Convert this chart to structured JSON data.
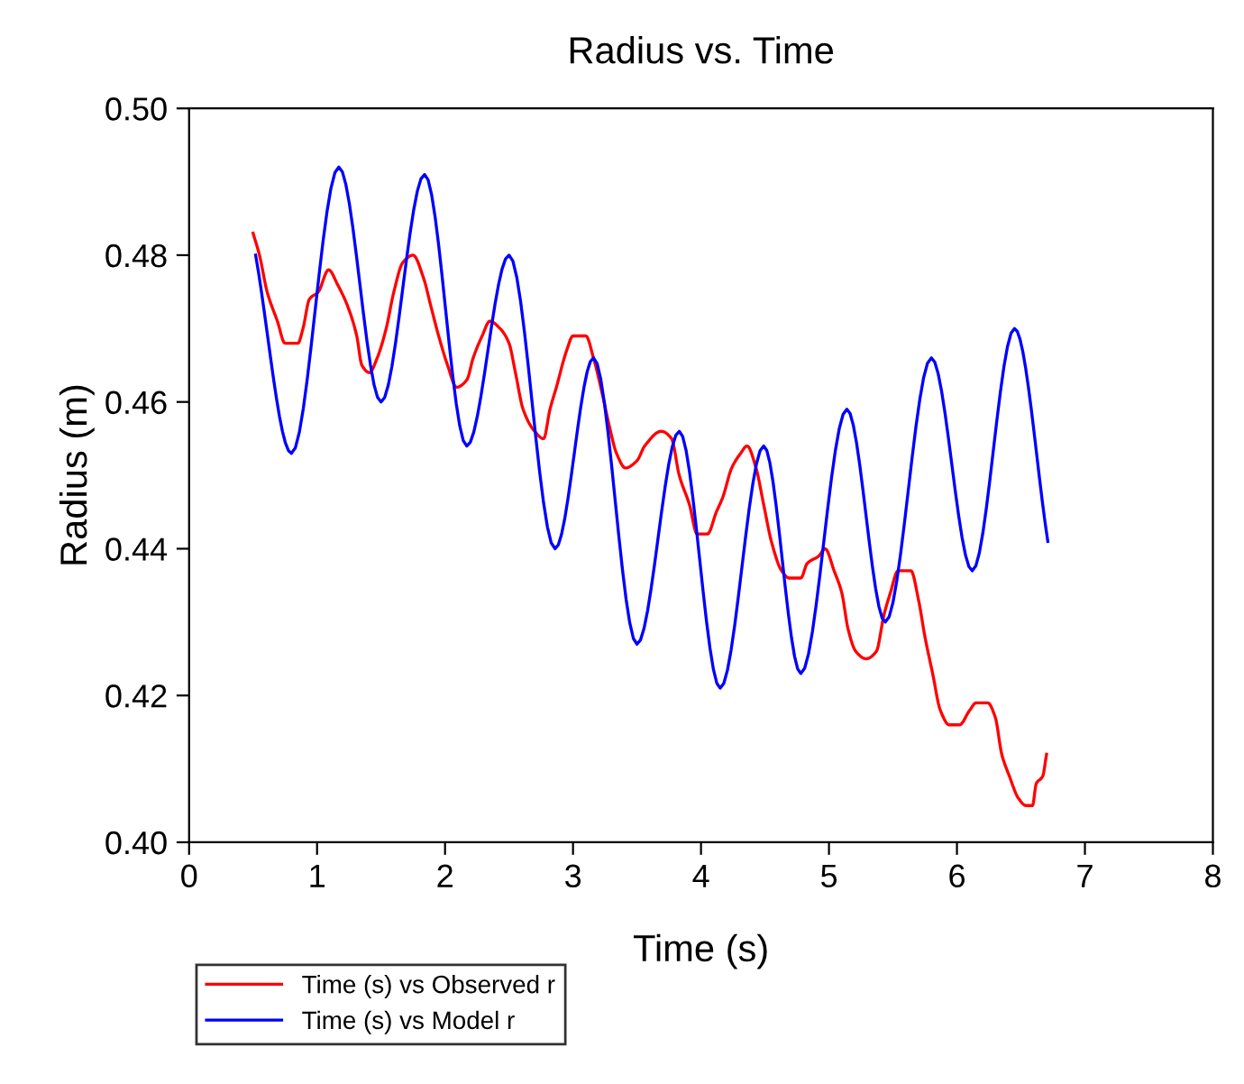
{
  "chart_data": {
    "type": "line",
    "title": "Radius vs. Time",
    "xlabel": "Time (s)",
    "ylabel": "Radius (m)",
    "xlim": [
      0,
      8
    ],
    "xticks": [
      0,
      1,
      2,
      3,
      4,
      5,
      6,
      7,
      8
    ],
    "ylim": [
      0.4,
      0.5
    ],
    "yticks": [
      {
        "value": 0.4,
        "label": "0.40"
      },
      {
        "value": 0.42,
        "label": "0.42"
      },
      {
        "value": 0.44,
        "label": "0.44"
      },
      {
        "value": 0.46,
        "label": "0.46"
      },
      {
        "value": 0.48,
        "label": "0.48"
      },
      {
        "value": 0.5,
        "label": "0.50"
      }
    ],
    "grid": false,
    "legend": "bottom left",
    "marker": "none",
    "line_style": "solid",
    "series": [
      {
        "name": "Time (s) vs Observed r",
        "color": "#ff0000",
        "x": [
          0.5,
          0.55,
          0.61,
          0.69,
          0.75,
          0.85,
          0.89,
          0.94,
          1.01,
          1.09,
          1.16,
          1.24,
          1.31,
          1.35,
          1.41,
          1.47,
          1.54,
          1.6,
          1.67,
          1.75,
          1.83,
          1.89,
          1.95,
          2.02,
          2.09,
          2.17,
          2.22,
          2.29,
          2.35,
          2.43,
          2.5,
          2.55,
          2.61,
          2.7,
          2.77,
          2.82,
          2.87,
          2.95,
          3.0,
          3.1,
          3.16,
          3.23,
          3.28,
          3.34,
          3.41,
          3.5,
          3.56,
          3.69,
          3.77,
          3.83,
          3.91,
          3.97,
          4.05,
          4.12,
          4.17,
          4.24,
          4.31,
          4.36,
          4.43,
          4.49,
          4.55,
          4.63,
          4.69,
          4.78,
          4.83,
          4.92,
          4.97,
          5.04,
          5.1,
          5.15,
          5.21,
          5.29,
          5.37,
          5.43,
          5.48,
          5.54,
          5.64,
          5.7,
          5.75,
          5.81,
          5.87,
          5.94,
          6.02,
          6.1,
          6.15,
          6.24,
          6.3,
          6.35,
          6.41,
          6.48,
          6.54,
          6.59,
          6.62,
          6.67,
          6.7
        ],
        "values": [
          0.483,
          0.48,
          0.475,
          0.471,
          0.468,
          0.468,
          0.47,
          0.474,
          0.475,
          0.478,
          0.476,
          0.473,
          0.469,
          0.465,
          0.464,
          0.466,
          0.47,
          0.475,
          0.479,
          0.48,
          0.477,
          0.473,
          0.469,
          0.465,
          0.462,
          0.463,
          0.466,
          0.469,
          0.471,
          0.47,
          0.468,
          0.464,
          0.459,
          0.456,
          0.455,
          0.459,
          0.462,
          0.467,
          0.469,
          0.469,
          0.466,
          0.461,
          0.457,
          0.453,
          0.451,
          0.452,
          0.454,
          0.456,
          0.455,
          0.45,
          0.446,
          0.442,
          0.442,
          0.445,
          0.447,
          0.451,
          0.453,
          0.454,
          0.451,
          0.446,
          0.441,
          0.437,
          0.436,
          0.436,
          0.438,
          0.439,
          0.44,
          0.437,
          0.434,
          0.429,
          0.426,
          0.425,
          0.426,
          0.431,
          0.434,
          0.437,
          0.437,
          0.433,
          0.428,
          0.423,
          0.418,
          0.416,
          0.416,
          0.418,
          0.419,
          0.419,
          0.417,
          0.412,
          0.409,
          0.406,
          0.405,
          0.405,
          0.408,
          0.409,
          0.412
        ]
      },
      {
        "name": "Time (s) vs Model r",
        "color": "#0000ff",
        "x": [
          0.52,
          0.8,
          1.17,
          1.5,
          1.84,
          2.17,
          2.5,
          2.86,
          3.16,
          3.5,
          3.83,
          4.15,
          4.49,
          4.78,
          5.14,
          5.44,
          5.8,
          6.12,
          6.45,
          6.71
        ],
        "values": [
          0.48,
          0.453,
          0.492,
          0.46,
          0.491,
          0.454,
          0.48,
          0.44,
          0.466,
          0.427,
          0.456,
          0.421,
          0.454,
          0.423,
          0.459,
          0.43,
          0.466,
          0.437,
          0.47,
          0.441
        ]
      }
    ]
  }
}
